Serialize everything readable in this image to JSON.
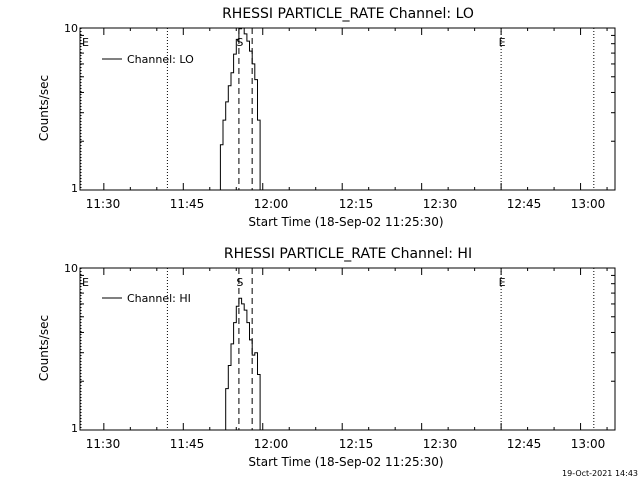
{
  "footer": {
    "timestamp": "19-Oct-2021 14:43"
  },
  "chart_data": [
    {
      "type": "line",
      "title": "RHESSI PARTICLE_RATE Channel: LO",
      "xlabel": "Start Time (18-Sep-02 11:25:30)",
      "ylabel": "Counts/sec",
      "y_scale": "log",
      "ylim": [
        1,
        10
      ],
      "xlim": [
        "11:25:30",
        "13:06:30"
      ],
      "x_ticks": [
        "11:30",
        "11:45",
        "12:00",
        "12:15",
        "12:30",
        "12:45",
        "13:00"
      ],
      "y_ticks": [
        "1",
        "10"
      ],
      "legend": {
        "position": "top-left",
        "entries": [
          "Channel: LO"
        ]
      },
      "series": [
        {
          "name": "Channel: LO",
          "x": [
            "11:51:30",
            "11:52:00",
            "11:52:30",
            "11:53:00",
            "11:53:30",
            "11:54:00",
            "11:54:30",
            "11:55:00",
            "11:55:30",
            "11:56:00",
            "11:56:30",
            "11:57:00",
            "11:57:30",
            "11:58:00",
            "11:58:30",
            "11:59:00",
            "11:59:30"
          ],
          "y": [
            1.0,
            1.9,
            2.7,
            3.5,
            4.4,
            5.3,
            6.9,
            8.5,
            9.9,
            10.5,
            9.2,
            8.3,
            7.2,
            6.0,
            4.8,
            2.7,
            1.0
          ]
        }
      ],
      "markers": [
        {
          "label": "E",
          "time": "11:25:30",
          "style": "dotted"
        },
        {
          "label": "",
          "time": "11:42:00",
          "style": "dotted"
        },
        {
          "label": "S",
          "time": "11:55:30",
          "style": "dashed"
        },
        {
          "label": "",
          "time": "11:58:00",
          "style": "dashed"
        },
        {
          "label": "E",
          "time": "12:45:00",
          "style": "dotted"
        },
        {
          "label": "",
          "time": "13:02:30",
          "style": "dotted"
        }
      ]
    },
    {
      "type": "line",
      "title": "RHESSI PARTICLE_RATE Channel: HI",
      "xlabel": "Start Time (18-Sep-02 11:25:30)",
      "ylabel": "Counts/sec",
      "y_scale": "log",
      "ylim": [
        1,
        10
      ],
      "xlim": [
        "11:25:30",
        "13:06:30"
      ],
      "x_ticks": [
        "11:30",
        "11:45",
        "12:00",
        "12:15",
        "12:30",
        "12:45",
        "13:00"
      ],
      "y_ticks": [
        "1",
        "10"
      ],
      "legend": {
        "position": "top-left",
        "entries": [
          "Channel: HI"
        ]
      },
      "series": [
        {
          "name": "Channel: HI",
          "x": [
            "11:52:30",
            "11:53:00",
            "11:53:30",
            "11:54:00",
            "11:54:30",
            "11:55:00",
            "11:55:30",
            "11:56:00",
            "11:56:30",
            "11:57:00",
            "11:57:30",
            "11:58:00",
            "11:58:30",
            "11:59:00",
            "11:59:30"
          ],
          "y": [
            1.0,
            1.8,
            2.5,
            3.4,
            4.6,
            5.8,
            6.5,
            6.0,
            5.5,
            4.6,
            3.6,
            2.9,
            3.0,
            2.2,
            1.0
          ]
        }
      ],
      "markers": [
        {
          "label": "E",
          "time": "11:25:30",
          "style": "dotted"
        },
        {
          "label": "",
          "time": "11:42:00",
          "style": "dotted"
        },
        {
          "label": "S",
          "time": "11:55:30",
          "style": "dashed"
        },
        {
          "label": "",
          "time": "11:58:00",
          "style": "dashed"
        },
        {
          "label": "E",
          "time": "12:45:00",
          "style": "dotted"
        },
        {
          "label": "",
          "time": "13:02:30",
          "style": "dotted"
        }
      ]
    }
  ]
}
